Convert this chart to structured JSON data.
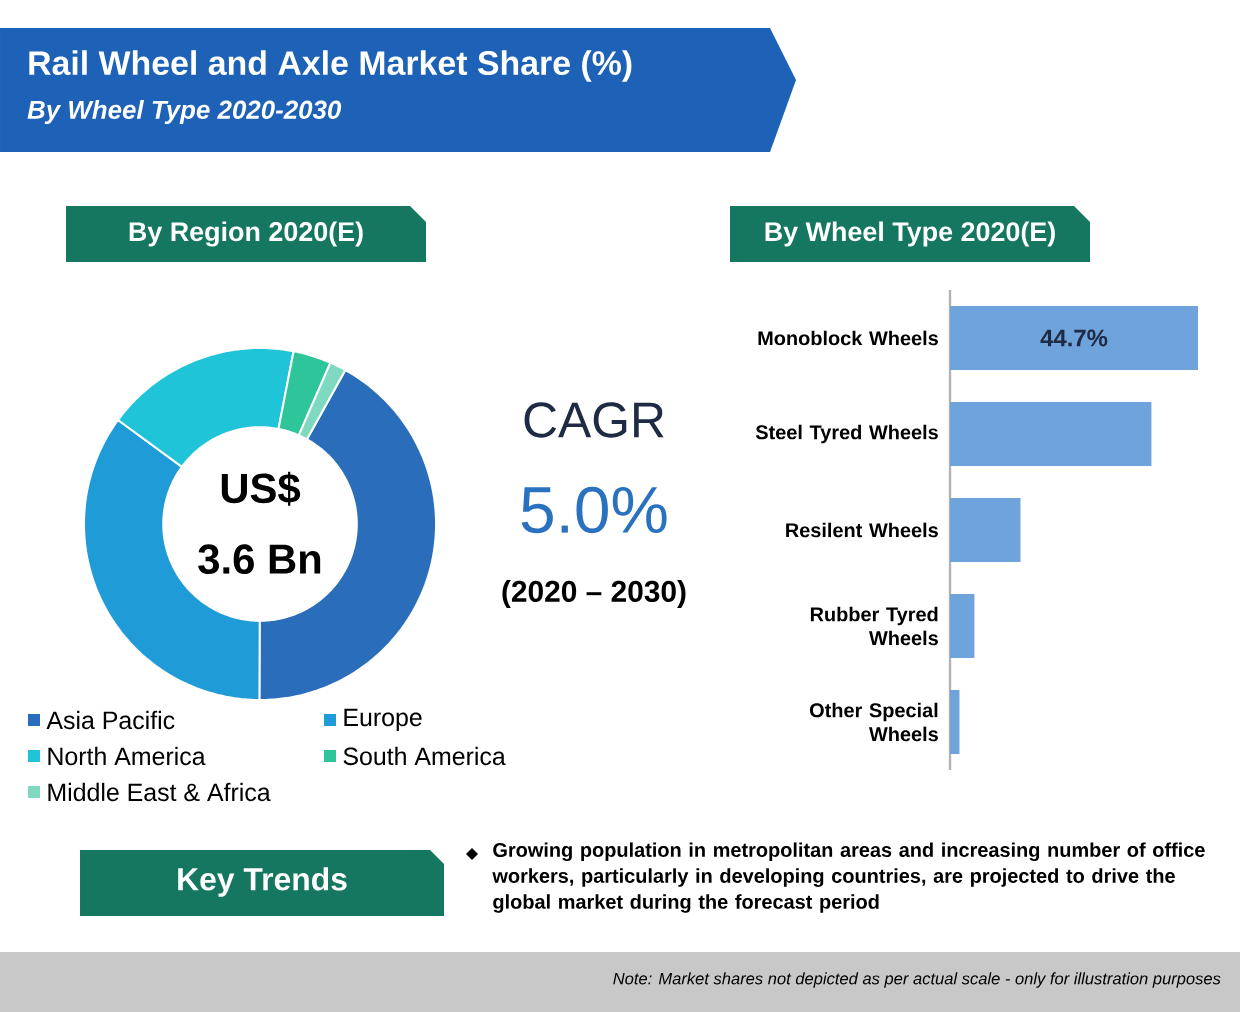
{
  "chart_data": [
    {
      "type": "other",
      "title": "Rail Wheel and Axle Market Share (%)",
      "subtitle": "By Wheel Type 2020-2030",
      "annotations": [
        "CAGR",
        "5.0%",
        "(2020 – 2030)",
        "Key Trends",
        "Growing population in metropolitan areas and increasing number of office workers, particularly in developing countries, are projected to drive the global market during the forecast period",
        "Note: Market shares not depicted as per actual scale - only for illustration purposes"
      ]
    },
    {
      "type": "donut",
      "title": "By Region 2020(E)",
      "categories": [
        "Asia Pacific",
        "Europe",
        "North America",
        "South America",
        "Middle East & Africa"
      ],
      "values": [
        42,
        35,
        18,
        3.5,
        1.5
      ],
      "colors": [
        "#2a6ebb",
        "#1f9bd7",
        "#20c4d8",
        "#2ec59a",
        "#7fd9c0"
      ],
      "legend": "bottom",
      "annotations": [
        "US$",
        "3.6 Bn"
      ]
    },
    {
      "type": "bar",
      "orientation": "horizontal",
      "title": "By Wheel Type 2020(E)",
      "categories": [
        "Monoblock Wheels",
        "Steel Tyred Wheels",
        "Resilent Wheels",
        "Rubber Tyred Wheels",
        "Other Special Wheels"
      ],
      "values": [
        44.7,
        36.3,
        12.7,
        4.4,
        1.7
      ],
      "color": "#6fa3dc",
      "value_labels": [
        "44.7%",
        null,
        null,
        null,
        null
      ]
    }
  ]
}
